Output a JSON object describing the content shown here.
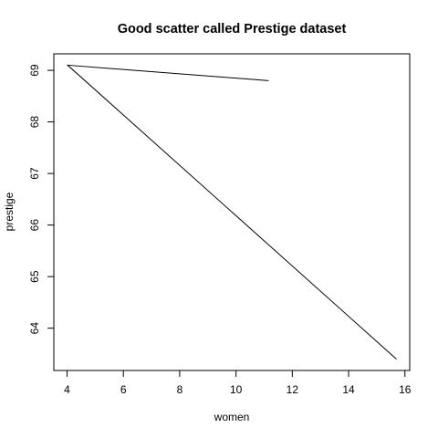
{
  "chart_data": {
    "type": "line",
    "title": "Good scatter called Prestige dataset",
    "xlabel": "women",
    "ylabel": "prestige",
    "xlim": [
      3.53,
      16.17
    ],
    "ylim": [
      63.18,
      69.32
    ],
    "x_ticks": [
      4,
      6,
      8,
      10,
      12,
      14,
      16
    ],
    "y_ticks": [
      64,
      65,
      66,
      67,
      68,
      69
    ],
    "x_tick_labels": [
      "4",
      "6",
      "8",
      "10",
      "12",
      "14",
      "16"
    ],
    "y_tick_labels": [
      "64",
      "65",
      "66",
      "67",
      "68",
      "69"
    ],
    "grid": false,
    "legend": "none",
    "series": [
      {
        "x": [
          11.16,
          4.02,
          15.7
        ],
        "y": [
          68.8,
          69.1,
          63.4
        ],
        "color": "#000000"
      }
    ]
  }
}
